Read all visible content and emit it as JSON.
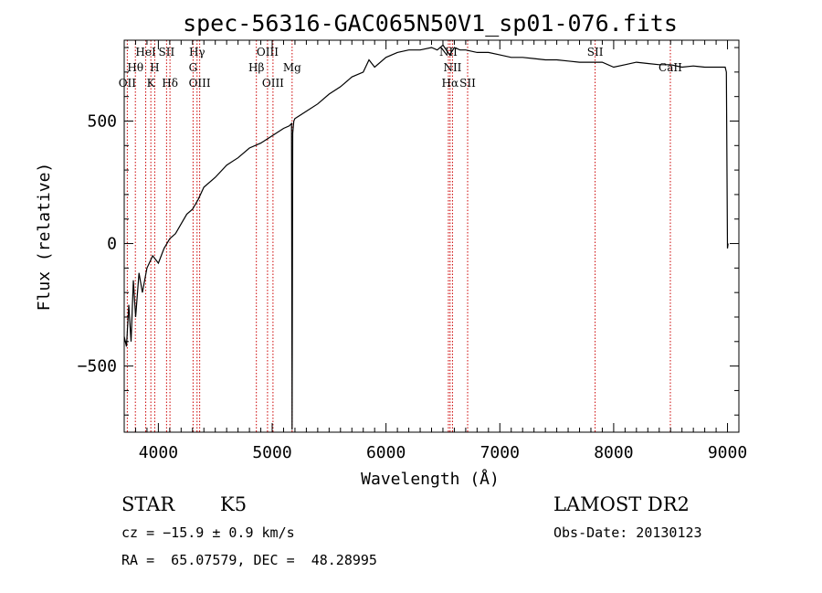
{
  "chart_data": {
    "type": "line",
    "title": "spec-56316-GAC065N50V1_sp01-076.fits",
    "xlabel": "Wavelength (Å)",
    "ylabel": "Flux (relative)",
    "xlim": [
      3700,
      9100
    ],
    "ylim": [
      -770,
      830
    ],
    "x_ticks": [
      4000,
      5000,
      6000,
      7000,
      8000,
      9000
    ],
    "x_tick_labels": [
      "4000",
      "5000",
      "6000",
      "7000",
      "8000",
      "9000"
    ],
    "y_ticks": [
      -500,
      0,
      500
    ],
    "y_tick_labels": [
      "−500",
      "0",
      "500"
    ],
    "grid": false,
    "line_color": "#000000",
    "marker_color": "#cc0000",
    "series": [
      {
        "values_x": [
          3700,
          3720,
          3740,
          3760,
          3780,
          3800,
          3830,
          3860,
          3900,
          3950,
          4000,
          4050,
          4100,
          4150,
          4200,
          4250,
          4300,
          4350,
          4400,
          4500,
          4600,
          4700,
          4800,
          4900,
          5000,
          5100,
          5150,
          5170,
          5175,
          5180,
          5190,
          5200,
          5300,
          5400,
          5500,
          5600,
          5700,
          5800,
          5850,
          5900,
          6000,
          6100,
          6200,
          6300,
          6400,
          6450,
          6500,
          6560,
          6600,
          6650,
          6700,
          6800,
          6900,
          7000,
          7100,
          7200,
          7300,
          7400,
          7500,
          7600,
          7700,
          7800,
          7900,
          8000,
          8100,
          8200,
          8300,
          8400,
          8500,
          8600,
          8700,
          8800,
          8900,
          8950,
          8980,
          8990,
          9000,
          9005
        ],
        "values_y": [
          -380,
          -420,
          -250,
          -400,
          -150,
          -300,
          -120,
          -200,
          -100,
          -50,
          -80,
          -20,
          20,
          40,
          80,
          120,
          140,
          180,
          230,
          270,
          320,
          350,
          390,
          410,
          440,
          470,
          480,
          490,
          -760,
          450,
          500,
          510,
          540,
          570,
          610,
          640,
          680,
          700,
          750,
          720,
          760,
          780,
          790,
          790,
          800,
          790,
          810,
          770,
          800,
          790,
          790,
          780,
          780,
          770,
          760,
          760,
          755,
          750,
          750,
          745,
          740,
          740,
          740,
          720,
          730,
          740,
          735,
          730,
          730,
          720,
          725,
          720,
          720,
          720,
          720,
          700,
          -20,
          0
        ]
      }
    ],
    "line_markers": [
      {
        "x": 3727,
        "label": "OII",
        "row": 3
      },
      {
        "x": 3798,
        "label": "Hθ",
        "row": 2
      },
      {
        "x": 3889,
        "label": "HeI",
        "row": 1
      },
      {
        "x": 3934,
        "label": "K",
        "row": 3
      },
      {
        "x": 3968,
        "label": "H",
        "row": 2
      },
      {
        "x": 4072,
        "label": "SII",
        "row": 1
      },
      {
        "x": 4102,
        "label": "Hδ",
        "row": 3
      },
      {
        "x": 4305,
        "label": "G",
        "row": 2
      },
      {
        "x": 4340,
        "label": "Hγ",
        "row": 1
      },
      {
        "x": 4363,
        "label": "OIII",
        "row": 3
      },
      {
        "x": 4861,
        "label": "Hβ",
        "row": 2
      },
      {
        "x": 4959,
        "label": "OIII",
        "row": 1
      },
      {
        "x": 5007,
        "label": "OIII",
        "row": 3
      },
      {
        "x": 5175,
        "label": "Mg",
        "row": 2
      },
      {
        "x": 6548,
        "label": "NII",
        "row": 1
      },
      {
        "x": 6563,
        "label": "Hα",
        "row": 3
      },
      {
        "x": 6584,
        "label": "NII",
        "row": 2
      },
      {
        "x": 6717,
        "label": "SII",
        "row": 3
      },
      {
        "x": 7837,
        "label": "SII",
        "row": 1
      },
      {
        "x": 8498,
        "label": "CaII",
        "row": 2
      }
    ]
  },
  "info": {
    "object_class": "STAR",
    "subclass": "K5",
    "survey": "LAMOST DR2",
    "redshift": "cz = −15.9 ± 0.9 km/s",
    "obs_date": "Obs-Date: 20130123",
    "coords": "RA =  65.07579, DEC =  48.28995"
  }
}
